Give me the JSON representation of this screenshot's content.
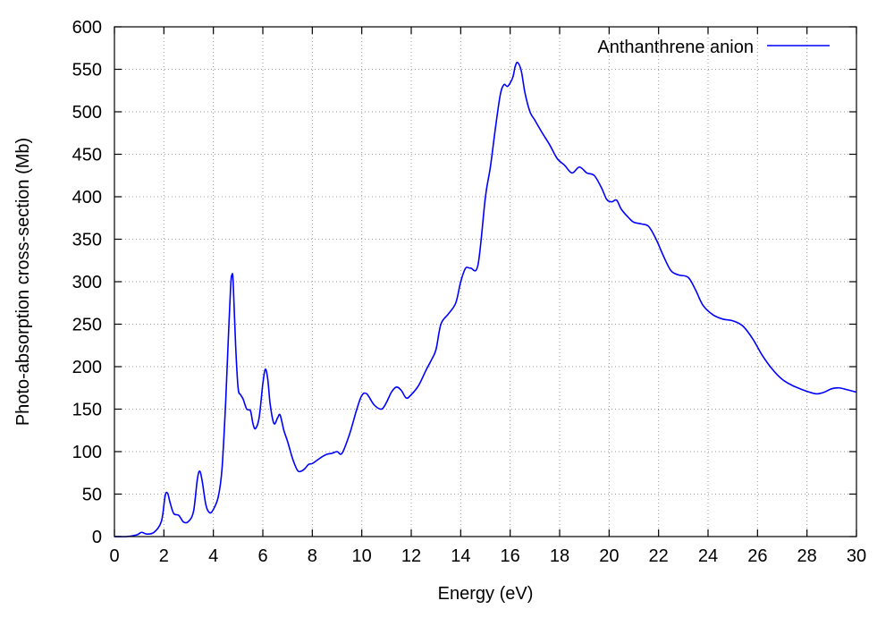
{
  "chart_data": {
    "type": "line",
    "title": "",
    "xlabel": "Energy (eV)",
    "ylabel": "Photo-absorption cross-section (Mb)",
    "xlim": [
      0,
      30
    ],
    "ylim": [
      0,
      600
    ],
    "xticks": [
      0,
      2,
      4,
      6,
      8,
      10,
      12,
      14,
      16,
      18,
      20,
      22,
      24,
      26,
      28,
      30
    ],
    "yticks": [
      0,
      50,
      100,
      150,
      200,
      250,
      300,
      350,
      400,
      450,
      500,
      550,
      600
    ],
    "grid": true,
    "legend_position": "top-right",
    "series": [
      {
        "name": "Anthanthrene anion",
        "color": "#0000ff",
        "x": [
          0.0,
          0.5,
          0.9,
          1.1,
          1.3,
          1.6,
          1.9,
          2.05,
          2.15,
          2.25,
          2.4,
          2.6,
          2.8,
          3.0,
          3.2,
          3.35,
          3.45,
          3.55,
          3.7,
          3.85,
          4.0,
          4.2,
          4.35,
          4.5,
          4.6,
          4.7,
          4.75,
          4.8,
          4.9,
          5.0,
          5.1,
          5.2,
          5.35,
          5.5,
          5.6,
          5.7,
          5.85,
          6.0,
          6.1,
          6.2,
          6.3,
          6.45,
          6.6,
          6.7,
          6.85,
          7.0,
          7.2,
          7.4,
          7.55,
          7.7,
          7.85,
          8.0,
          8.2,
          8.4,
          8.6,
          8.8,
          9.0,
          9.2,
          9.5,
          9.8,
          10.0,
          10.2,
          10.5,
          10.8,
          11.0,
          11.2,
          11.4,
          11.6,
          11.8,
          12.0,
          12.3,
          12.6,
          12.8,
          13.0,
          13.2,
          13.5,
          13.8,
          14.0,
          14.2,
          14.4,
          14.7,
          15.0,
          15.2,
          15.4,
          15.6,
          15.75,
          15.9,
          16.1,
          16.2,
          16.3,
          16.45,
          16.6,
          16.8,
          17.0,
          17.3,
          17.6,
          17.9,
          18.2,
          18.5,
          18.8,
          19.1,
          19.4,
          19.7,
          19.9,
          20.1,
          20.3,
          20.5,
          20.8,
          21.0,
          21.3,
          21.6,
          21.9,
          22.2,
          22.5,
          22.8,
          23.2,
          23.5,
          23.8,
          24.2,
          24.6,
          25.0,
          25.4,
          25.8,
          26.2,
          26.6,
          27.0,
          27.4,
          27.8,
          28.1,
          28.4,
          28.7,
          29.0,
          29.3,
          29.6,
          30.0
        ],
        "y": [
          0,
          0,
          2,
          5,
          3,
          5,
          18,
          48,
          51,
          40,
          27,
          25,
          17,
          18,
          30,
          67,
          77,
          65,
          37,
          28,
          32,
          47,
          80,
          160,
          230,
          295,
          308,
          300,
          225,
          175,
          167,
          162,
          150,
          148,
          133,
          127,
          140,
          180,
          197,
          185,
          155,
          133,
          140,
          143,
          125,
          112,
          92,
          78,
          77,
          80,
          85,
          86,
          90,
          94,
          97,
          98,
          100,
          98,
          120,
          150,
          166,
          168,
          155,
          150,
          158,
          170,
          176,
          172,
          163,
          167,
          178,
          196,
          207,
          220,
          250,
          262,
          275,
          300,
          316,
          316,
          320,
          400,
          435,
          480,
          520,
          532,
          530,
          540,
          553,
          558,
          548,
          522,
          500,
          490,
          475,
          461,
          445,
          437,
          428,
          435,
          428,
          425,
          410,
          397,
          394,
          396,
          385,
          375,
          370,
          368,
          365,
          350,
          330,
          313,
          308,
          305,
          290,
          272,
          261,
          256,
          254,
          248,
          233,
          213,
          197,
          185,
          178,
          173,
          170,
          168,
          170,
          174,
          175,
          173,
          170
        ]
      }
    ]
  }
}
